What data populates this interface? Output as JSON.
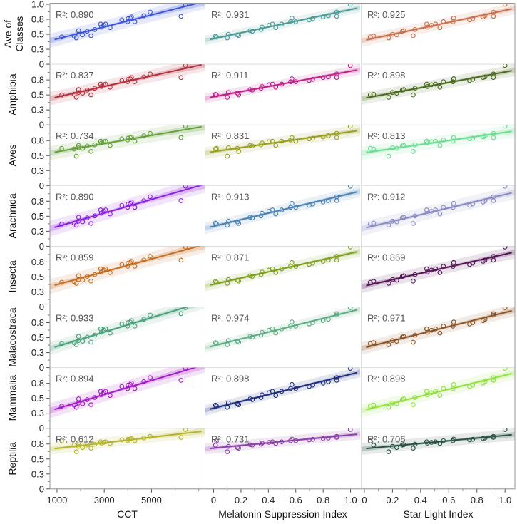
{
  "chart_data": {
    "type": "scatter",
    "grid": false,
    "legend": "none",
    "y_ticks": [
      0,
      0.25,
      0.5,
      0.75,
      1.0
    ],
    "y_tick_labels": [
      "0",
      "0.3",
      "0.5",
      "0.8",
      "1.0"
    ],
    "ylim": [
      0,
      1.0
    ],
    "columns": [
      {
        "xlabel": "CCT",
        "xlim": [
          700,
          7250
        ],
        "x_ticks": [
          1000,
          3000,
          5000
        ],
        "x_tick_labels": [
          "1000",
          "3000",
          "5000"
        ],
        "x_minor_ticks": [
          2000,
          4000,
          6000,
          7000
        ],
        "x": [
          1200,
          1724,
          1819,
          1914,
          1914,
          2086,
          2276,
          2438,
          2600,
          2848,
          2880,
          2976,
          3057,
          3248,
          3743,
          3990,
          4010,
          4100,
          4152,
          4295,
          4676,
          4943,
          6248,
          6438
        ]
      },
      {
        "xlabel": "Melatonin Suppression Index",
        "xlim": [
          -0.06,
          1.07
        ],
        "x_ticks": [
          0,
          0.2,
          0.4,
          0.6,
          0.8,
          1.0
        ],
        "x_tick_labels": [
          "0",
          "0.2",
          "0.4",
          "0.6",
          "0.8",
          "1.0"
        ],
        "x_minor_ticks": [
          0.1,
          0.3,
          0.5,
          0.7,
          0.9
        ],
        "x": [
          0.021,
          0.014,
          0.1,
          0.267,
          0.108,
          0.174,
          0.283,
          0.183,
          0.346,
          0.43,
          0.354,
          0.405,
          0.497,
          0.454,
          0.698,
          0.562,
          0.724,
          0.572,
          0.8,
          0.6,
          0.838,
          0.899,
          0.899,
          0.998
        ]
      },
      {
        "xlabel": "Star Light Index",
        "xlim": [
          -0.02,
          1.07
        ],
        "x_ticks": [
          0,
          0.2,
          0.4,
          0.6,
          0.8,
          1.0
        ],
        "x_tick_labels": [
          "0",
          "0.2",
          "0.4",
          "0.6",
          "0.8",
          "1.0"
        ],
        "x_minor_ticks": [
          0.1,
          0.3,
          0.5,
          0.7,
          0.9
        ],
        "x": [
          0.042,
          0.066,
          0.173,
          0.28,
          0.2,
          0.23,
          0.27,
          0.347,
          0.36,
          0.443,
          0.448,
          0.477,
          0.506,
          0.537,
          0.748,
          0.562,
          0.77,
          0.635,
          0.844,
          0.63,
          0.858,
          0.917,
          0.917,
          1.0
        ]
      }
    ],
    "rows": [
      {
        "label": [
          "Ave of",
          "Classes"
        ],
        "colors": [
          "#3d55d6",
          "#4a9a96",
          "#c8714f"
        ],
        "r2": [
          "R²: 0.890",
          "R²: 0.931",
          "R²: 0.925"
        ],
        "y": [
          0.456,
          0.47,
          0.44,
          0.56,
          0.5,
          0.49,
          0.55,
          0.476,
          0.58,
          0.67,
          0.62,
          0.65,
          0.67,
          0.61,
          0.74,
          0.71,
          0.76,
          0.77,
          0.79,
          0.71,
          0.81,
          0.87,
          0.8,
          1.0
        ]
      },
      {
        "label": [
          "Amphibia"
        ],
        "colors": [
          "#b3303e",
          "#c0208a",
          "#4a6a1e"
        ],
        "r2": [
          "R²: 0.837",
          "R²: 0.911",
          "R²: 0.898"
        ],
        "y": [
          0.5,
          0.51,
          0.46,
          0.59,
          0.54,
          0.53,
          0.58,
          0.5,
          0.61,
          0.68,
          0.64,
          0.67,
          0.68,
          0.63,
          0.74,
          0.72,
          0.76,
          0.77,
          0.79,
          0.72,
          0.8,
          0.85,
          0.79,
          0.99
        ]
      },
      {
        "label": [
          "Aves"
        ],
        "colors": [
          "#64a03a",
          "#98a01e",
          "#6cdc92"
        ],
        "r2": [
          "R²: 0.734",
          "R²: 0.831",
          "R²: 0.813"
        ],
        "y": [
          0.62,
          0.61,
          0.49,
          0.67,
          0.63,
          0.62,
          0.66,
          0.57,
          0.68,
          0.74,
          0.71,
          0.73,
          0.74,
          0.67,
          0.78,
          0.76,
          0.79,
          0.8,
          0.81,
          0.74,
          0.83,
          0.87,
          0.8,
          0.99
        ]
      },
      {
        "label": [
          "Arachnida"
        ],
        "colors": [
          "#8a20e0",
          "#4a82b4",
          "#8c8cc4"
        ],
        "r2": [
          "R²: 0.890",
          "R²: 0.913",
          "R²: 0.912"
        ],
        "y": [
          0.37,
          0.385,
          0.352,
          0.484,
          0.418,
          0.407,
          0.473,
          0.38,
          0.506,
          0.605,
          0.55,
          0.583,
          0.605,
          0.539,
          0.682,
          0.649,
          0.704,
          0.715,
          0.737,
          0.649,
          0.759,
          0.825,
          0.76,
          1.0
        ]
      },
      {
        "label": [
          "Insecta"
        ],
        "colors": [
          "#c46e24",
          "#7ea01e",
          "#541456"
        ],
        "r2": [
          "R²: 0.859",
          "R²: 0.871",
          "R²: 0.869"
        ],
        "y": [
          0.41,
          0.425,
          0.393,
          0.519,
          0.456,
          0.446,
          0.509,
          0.431,
          0.54,
          0.635,
          0.582,
          0.614,
          0.635,
          0.572,
          0.708,
          0.677,
          0.729,
          0.74,
          0.761,
          0.677,
          0.782,
          0.845,
          0.78,
          1.0
        ]
      },
      {
        "label": [
          "Malacostraca"
        ],
        "colors": [
          "#4aa07a",
          "#5eac84",
          "#8a5426"
        ],
        "r2": [
          "R²: 0.933",
          "R²: 0.974",
          "R²: 0.971"
        ],
        "y": [
          0.4,
          0.416,
          0.382,
          0.52,
          0.451,
          0.439,
          0.508,
          0.423,
          0.543,
          0.646,
          0.589,
          0.623,
          0.646,
          0.577,
          0.727,
          0.692,
          0.75,
          0.761,
          0.784,
          0.692,
          0.807,
          0.876,
          0.9,
          1.0
        ]
      },
      {
        "label": [
          "Mammalia"
        ],
        "colors": [
          "#a21cc4",
          "#1e2e7e",
          "#92e042"
        ],
        "r2": [
          "R²: 0.894",
          "R²: 0.898",
          "R²: 0.898"
        ],
        "y": [
          0.37,
          0.386,
          0.352,
          0.49,
          0.421,
          0.409,
          0.478,
          0.393,
          0.513,
          0.616,
          0.559,
          0.593,
          0.616,
          0.547,
          0.697,
          0.662,
          0.72,
          0.731,
          0.754,
          0.662,
          0.777,
          0.846,
          0.8,
          1.0
        ]
      },
      {
        "label": [
          "Reptilia"
        ],
        "colors": [
          "#b4b42a",
          "#8a40a6",
          "#2a5242"
        ],
        "r2": [
          "R²: 0.612",
          "R²: 0.731",
          "R²: 0.706"
        ],
        "y": [
          0.8,
          0.73,
          0.62,
          0.737,
          0.71,
          0.69,
          0.732,
          0.68,
          0.746,
          0.786,
          0.764,
          0.777,
          0.786,
          0.759,
          0.818,
          0.804,
          0.827,
          0.831,
          0.84,
          0.804,
          0.849,
          0.876,
          0.86,
          0.99
        ]
      }
    ]
  }
}
